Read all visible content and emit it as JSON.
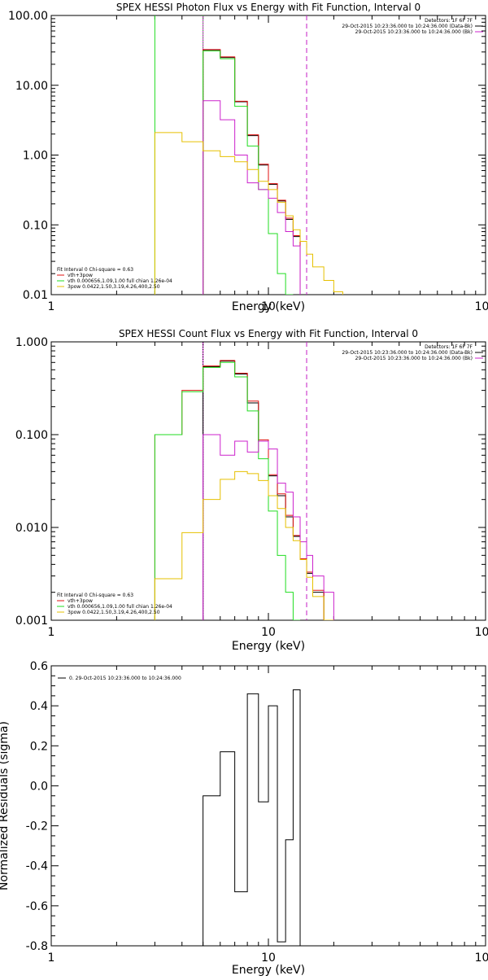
{
  "colors": {
    "black": "#000000",
    "red": "#e01010",
    "green": "#22dd22",
    "magenta": "#cc22cc",
    "yellow": "#e6c000",
    "vline_green": "#22dd22",
    "vline_magenta": "#cc22cc"
  },
  "chart_data": [
    {
      "type": "line",
      "title": "SPEX HESSI Photon Flux vs Energy with Fit Function, Interval 0",
      "xlabel": "Energy (keV)",
      "ylabel": "",
      "xscale": "log",
      "yscale": "log",
      "xlim": [
        1,
        100
      ],
      "ylim": [
        0.01,
        100
      ],
      "xticks": [
        1,
        10,
        100
      ],
      "xticklabels": [
        "1",
        "10",
        "100"
      ],
      "yticks": [
        0.01,
        0.1,
        1,
        10,
        100
      ],
      "yticklabels": [
        "0.01",
        "0.10",
        "1.00",
        "10.00",
        "100.00"
      ],
      "vlines": [
        {
          "x": 3.0,
          "color": "green",
          "style": "solid"
        },
        {
          "x": 5.0,
          "color": "magenta",
          "style": "solid"
        },
        {
          "x": 5.0,
          "color": "green",
          "style": "dotted"
        },
        {
          "x": 15.0,
          "color": "black",
          "style": "dashed"
        },
        {
          "x": 15.0,
          "color": "magenta",
          "style": "dashed"
        }
      ],
      "legend_header": [
        "Detectors: 1F 6F 7F",
        "29-Oct-2015 10:23:36.000 to 10:24:36.000 (Data-Bk)",
        "29-Oct-2015 10:23:36.000 to 10:24:36.000 (Bk)"
      ],
      "legend_header_colors": [
        "black",
        "black",
        "magenta"
      ],
      "legend_fit": [
        "Fit Interval 0   Chi-square = 0.63",
        "vth+3pow",
        "vth 0.000656,1.09,1.00   full chian 1.26e-04",
        "3pow 0.0422,1.50,3.19,4.26,400,2.50"
      ],
      "legend_fit_colors": [
        "black",
        "red",
        "green",
        "yellow"
      ],
      "edges": [
        3.0,
        4.0,
        5.0,
        6.0,
        7.0,
        8.0,
        9.0,
        10.0,
        11.0,
        12.0,
        13.0,
        14.0,
        15.0,
        16.0,
        18.0,
        20.0,
        22.0
      ],
      "series": [
        {
          "color": "black",
          "start": 2,
          "values": [
            32,
            25,
            5.8,
            1.9,
            0.72,
            0.38,
            0.22,
            0.12,
            0.068
          ]
        },
        {
          "color": "red",
          "start": 2,
          "values": [
            32.5,
            25.5,
            5.9,
            1.95,
            0.74,
            0.39,
            0.225,
            0.125,
            0.07
          ]
        },
        {
          "color": "green",
          "start": 2,
          "values": [
            31,
            24,
            5.0,
            1.35,
            0.32,
            0.075,
            0.02,
            0.01
          ]
        },
        {
          "color": "magenta",
          "start": 2,
          "values": [
            6.0,
            3.2,
            1.0,
            0.4,
            0.32,
            0.24,
            0.15,
            0.08,
            0.05
          ]
        },
        {
          "color": "yellow",
          "start": 0,
          "values": [
            2.1,
            1.55,
            1.15,
            0.95,
            0.8,
            0.62,
            0.42,
            0.32,
            0.21,
            0.135,
            0.085,
            0.058,
            0.038,
            0.025,
            0.016,
            0.011
          ]
        }
      ]
    },
    {
      "type": "line",
      "title": "SPEX HESSI Count Flux vs Energy with Fit Function, Interval 0",
      "xlabel": "Energy (keV)",
      "ylabel": "",
      "xscale": "log",
      "yscale": "log",
      "xlim": [
        1,
        100
      ],
      "ylim": [
        0.001,
        1
      ],
      "xticks": [
        1,
        10,
        100
      ],
      "xticklabels": [
        "1",
        "10",
        "100"
      ],
      "yticks": [
        0.001,
        0.01,
        0.1,
        1
      ],
      "yticklabels": [
        "0.001",
        "0.010",
        "0.100",
        "1.000"
      ],
      "vlines": [
        {
          "x": 5.0,
          "color": "magenta",
          "style": "solid"
        },
        {
          "x": 5.0,
          "color": "black",
          "style": "dotted"
        },
        {
          "x": 15.0,
          "color": "black",
          "style": "dashed"
        },
        {
          "x": 15.0,
          "color": "magenta",
          "style": "dashed"
        }
      ],
      "legend_header": [
        "Detectors: 1F 6F 7F",
        "29-Oct-2015 10:23:36.000 to 10:24:36.000 (Data-Bk)",
        "29-Oct-2015 10:23:36.000 to 10:24:36.000 (Bk)"
      ],
      "legend_header_colors": [
        "black",
        "black",
        "magenta"
      ],
      "legend_fit": [
        "Fit Interval 0   Chi-square = 0.63",
        "vth+3pow",
        "vth 0.000656,1.09,1.00   full chian 1.26e-04",
        "3pow 0.0422,1.50,3.19,4.26,400,2.50"
      ],
      "legend_fit_colors": [
        "black",
        "red",
        "green",
        "yellow"
      ],
      "edges": [
        3.0,
        4.0,
        5.0,
        6.0,
        7.0,
        8.0,
        9.0,
        10.0,
        11.0,
        12.0,
        13.0,
        14.0,
        15.0,
        16.0,
        18.0,
        20.0,
        22.0
      ],
      "series": [
        {
          "color": "black",
          "start": 2,
          "values": [
            0.54,
            0.62,
            0.45,
            0.22,
            0.085,
            0.036,
            0.022,
            0.013,
            0.008,
            0.0045,
            0.0032,
            0.002
          ]
        },
        {
          "color": "red",
          "start": 0,
          "values": [
            0.1,
            0.3,
            0.55,
            0.63,
            0.46,
            0.23,
            0.088,
            0.037,
            0.023,
            0.0135,
            0.0082,
            0.0046,
            0.0033,
            0.0021
          ]
        },
        {
          "color": "green",
          "start": 0,
          "values": [
            0.1,
            0.29,
            0.53,
            0.6,
            0.42,
            0.18,
            0.055,
            0.015,
            0.005,
            0.002,
            0.001
          ]
        },
        {
          "color": "magenta",
          "start": 2,
          "values": [
            0.1,
            0.06,
            0.085,
            0.065,
            0.085,
            0.07,
            0.03,
            0.024,
            0.013,
            0.007,
            0.005,
            0.003,
            0.002
          ]
        },
        {
          "color": "yellow",
          "start": 0,
          "values": [
            0.0028,
            0.0088,
            0.02,
            0.033,
            0.04,
            0.038,
            0.032,
            0.022,
            0.016,
            0.01,
            0.0072,
            0.0045,
            0.0029,
            0.0018,
            0.001
          ]
        }
      ]
    },
    {
      "type": "line",
      "title": "",
      "xlabel": "Energy (keV)",
      "ylabel": "Normalized Residuals (sigma)",
      "xscale": "log",
      "yscale": "linear",
      "xlim": [
        1,
        100
      ],
      "ylim": [
        -0.8,
        0.6
      ],
      "xticks": [
        1,
        10,
        100
      ],
      "xticklabels": [
        "1",
        "10",
        "100"
      ],
      "yticks": [
        -0.8,
        -0.6,
        -0.4,
        -0.2,
        0.0,
        0.2,
        0.4,
        0.6
      ],
      "yticklabels": [
        "-0.8",
        "-0.6",
        "-0.4",
        "-0.2",
        "0.0",
        "0.2",
        "0.4",
        "0.6"
      ],
      "legend_fit": [
        "0. 29-Oct-2015 10:23:36.000 to 10:24:36.000"
      ],
      "legend_fit_colors": [
        "black"
      ],
      "edges": [
        5.0,
        6.0,
        7.0,
        8.0,
        9.0,
        10.0,
        11.0,
        12.0,
        13.0,
        14.0,
        15.0
      ],
      "series": [
        {
          "color": "black",
          "start": 0,
          "values": [
            -0.05,
            0.17,
            -0.53,
            0.46,
            -0.08,
            0.4,
            -0.78,
            -0.27,
            0.48
          ]
        }
      ]
    }
  ]
}
